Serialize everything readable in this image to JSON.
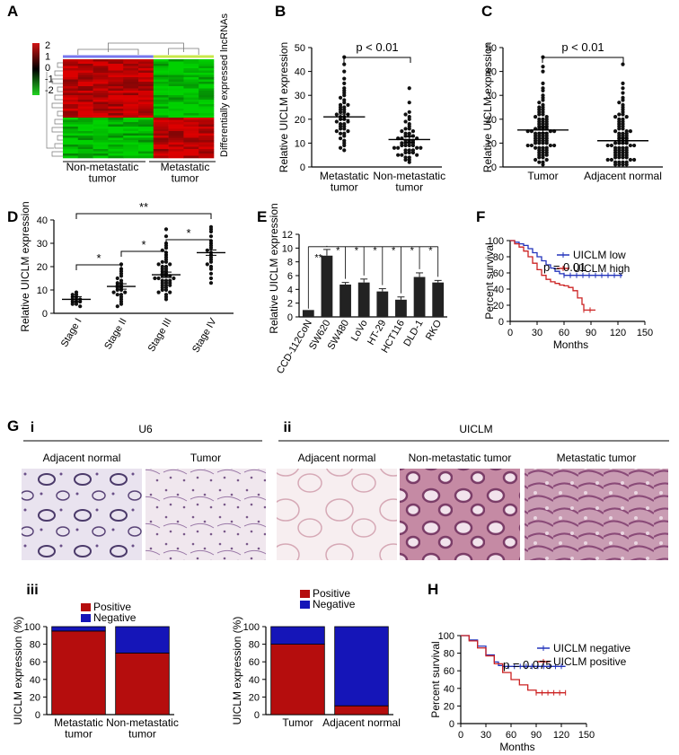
{
  "panel_letters": {
    "A": "A",
    "B": "B",
    "C": "C",
    "D": "D",
    "E": "E",
    "F": "F",
    "G": "G",
    "H": "H"
  },
  "panelA": {
    "legend_ticks": [
      "2",
      "1",
      "0",
      "-1",
      "-2"
    ],
    "group_labels": [
      "Non-metastatic\ntumor",
      "Metastatic\ntumor"
    ],
    "side_label": "Differentially expressed lncRNAs",
    "colors": {
      "high": "#d11414",
      "low": "#21d321",
      "mid": "#000000"
    }
  },
  "panelG": {
    "sub_labels": [
      "i",
      "ii",
      "iii"
    ],
    "u6_title": "U6",
    "uiclm_title": "UICLM",
    "u6_images": [
      "Adjacent normal",
      "Tumor"
    ],
    "uiclm_images": [
      "Adjacent normal",
      "Non-metastatic tumor",
      "Metastatic tumor"
    ]
  },
  "chart_data": [
    {
      "panel": "B",
      "type": "scatter",
      "ylabel": "Relative UICLM expression",
      "categories": [
        "Metastatic\ntumor",
        "Non-metastatic\ntumor"
      ],
      "ylim": [
        0,
        50
      ],
      "yticks": [
        0,
        10,
        20,
        30,
        40,
        50
      ],
      "means": [
        21,
        11.5
      ],
      "annotation": "p < 0.01",
      "series": [
        {
          "values": [
            46,
            43,
            40,
            37,
            35,
            33,
            32,
            31,
            30,
            29,
            28,
            27,
            26,
            26,
            25,
            25,
            24,
            24,
            23,
            23,
            22,
            22,
            21,
            21,
            20,
            20,
            19,
            19,
            18,
            18,
            17,
            17,
            16,
            16,
            15,
            15,
            14,
            14,
            13,
            12,
            11,
            10,
            9,
            8,
            7
          ]
        },
        {
          "values": [
            33,
            27,
            23,
            22,
            21,
            20,
            19,
            18,
            17,
            16,
            16,
            15,
            15,
            14,
            14,
            13,
            13,
            13,
            12,
            12,
            12,
            11,
            11,
            11,
            10,
            10,
            10,
            10,
            9,
            9,
            9,
            9,
            8,
            8,
            8,
            8,
            7,
            7,
            7,
            6,
            6,
            6,
            5,
            5,
            5,
            4,
            4,
            3,
            3,
            2
          ]
        }
      ]
    },
    {
      "panel": "C",
      "type": "scatter",
      "ylabel": "Relative UICLM expression",
      "categories": [
        "Tumor",
        "Adjacent normal"
      ],
      "ylim": [
        0,
        50
      ],
      "yticks": [
        0,
        10,
        20,
        30,
        40,
        50
      ],
      "means": [
        15.5,
        11
      ],
      "annotation": "p < 0.01",
      "series": [
        {
          "values": [
            46,
            42,
            40,
            35,
            33,
            32,
            30,
            29,
            28,
            27,
            26,
            25,
            25,
            24,
            24,
            23,
            23,
            22,
            22,
            21,
            21,
            20,
            20,
            20,
            19,
            19,
            19,
            18,
            18,
            18,
            17,
            17,
            17,
            16,
            16,
            16,
            16,
            15,
            15,
            15,
            15,
            14,
            14,
            14,
            14,
            13,
            13,
            13,
            13,
            12,
            12,
            12,
            12,
            11,
            11,
            11,
            11,
            10,
            10,
            10,
            10,
            9,
            9,
            9,
            9,
            8,
            8,
            8,
            8,
            7,
            7,
            7,
            6,
            6,
            6,
            5,
            5,
            5,
            4,
            4,
            3,
            3,
            2,
            2,
            1
          ]
        },
        {
          "values": [
            43,
            35,
            33,
            31,
            29,
            28,
            27,
            26,
            25,
            24,
            23,
            22,
            22,
            21,
            21,
            20,
            20,
            19,
            19,
            18,
            18,
            17,
            17,
            16,
            16,
            15,
            15,
            15,
            14,
            14,
            14,
            13,
            13,
            13,
            12,
            12,
            12,
            11,
            11,
            11,
            10,
            10,
            10,
            10,
            9,
            9,
            9,
            9,
            8,
            8,
            8,
            8,
            7,
            7,
            7,
            7,
            6,
            6,
            6,
            6,
            5,
            5,
            5,
            5,
            4,
            4,
            4,
            4,
            3,
            3,
            3,
            3,
            2,
            2,
            2,
            2,
            1,
            1,
            1,
            1
          ]
        }
      ]
    },
    {
      "panel": "D",
      "type": "scatter",
      "ylabel": "Relative UICLM expression",
      "categories": [
        "Stage I",
        "Stage II",
        "Stage III",
        "Stage IV"
      ],
      "ylim": [
        0,
        40
      ],
      "yticks": [
        0,
        10,
        20,
        30,
        40
      ],
      "means": [
        6,
        11.5,
        16.5,
        26
      ],
      "series": [
        {
          "values": [
            9,
            8,
            8,
            7,
            7,
            6,
            6,
            6,
            5,
            5,
            5,
            4,
            4,
            3
          ]
        },
        {
          "values": [
            21,
            19,
            18,
            17,
            16,
            15,
            14,
            13,
            13,
            12,
            12,
            11,
            11,
            10,
            10,
            9,
            9,
            8,
            8,
            7,
            6,
            5,
            4,
            3
          ]
        },
        {
          "values": [
            36,
            33,
            30,
            29,
            28,
            27,
            26,
            25,
            24,
            23,
            22,
            22,
            21,
            21,
            20,
            20,
            19,
            19,
            18,
            18,
            17,
            17,
            16,
            16,
            16,
            15,
            15,
            15,
            14,
            14,
            14,
            13,
            13,
            13,
            12,
            12,
            12,
            11,
            11,
            10,
            10,
            9,
            9,
            8,
            7,
            6
          ]
        },
        {
          "values": [
            37,
            36,
            35,
            33,
            31,
            30,
            29,
            28,
            27,
            26,
            25,
            24,
            23,
            22,
            21,
            20,
            19,
            17,
            15,
            13
          ]
        }
      ],
      "sig": [
        "*",
        "*",
        "*",
        "**"
      ]
    },
    {
      "panel": "E",
      "type": "bar",
      "ylabel": "Relative UICLM expression",
      "categories": [
        "CCD-112CoN",
        "SW620",
        "SW480",
        "LoVo",
        "HT-29",
        "HCT116",
        "DLD-1",
        "RKO"
      ],
      "values": [
        1,
        8.9,
        4.7,
        5,
        3.7,
        2.5,
        5.8,
        5
      ],
      "errors": [
        0,
        0.9,
        0.3,
        0.5,
        0.4,
        0.4,
        0.6,
        0.3
      ],
      "sig": [
        "",
        "**",
        "*",
        "*",
        "*",
        "*",
        "*",
        "*"
      ],
      "ylim": [
        0,
        12
      ],
      "yticks": [
        0,
        2,
        4,
        6,
        8,
        10,
        12
      ]
    },
    {
      "panel": "F",
      "type": "line",
      "ylabel": "Percent survival",
      "xlabel": "Months",
      "xlim": [
        0,
        150
      ],
      "ylim": [
        0,
        100
      ],
      "xticks": [
        0,
        30,
        60,
        90,
        120,
        150
      ],
      "yticks": [
        0,
        20,
        40,
        60,
        80,
        100
      ],
      "annotation": "p = 0.01",
      "series": [
        {
          "name": "UICLM low",
          "color": "#2233bb",
          "points": [
            [
              0,
              100
            ],
            [
              5,
              98
            ],
            [
              10,
              96
            ],
            [
              15,
              94
            ],
            [
              20,
              90
            ],
            [
              25,
              85
            ],
            [
              30,
              80
            ],
            [
              35,
              75
            ],
            [
              40,
              70
            ],
            [
              45,
              66
            ],
            [
              50,
              62
            ],
            [
              55,
              59
            ],
            [
              60,
              57
            ],
            [
              125,
              57
            ]
          ]
        },
        {
          "name": "UICLM high",
          "color": "#cc2222",
          "points": [
            [
              0,
              100
            ],
            [
              5,
              96
            ],
            [
              10,
              92
            ],
            [
              15,
              87
            ],
            [
              20,
              80
            ],
            [
              25,
              72
            ],
            [
              30,
              64
            ],
            [
              35,
              57
            ],
            [
              40,
              52
            ],
            [
              45,
              49
            ],
            [
              50,
              47
            ],
            [
              55,
              45
            ],
            [
              60,
              44
            ],
            [
              65,
              42
            ],
            [
              70,
              38
            ],
            [
              75,
              29
            ],
            [
              80,
              21
            ],
            [
              82,
              14
            ],
            [
              95,
              14
            ]
          ]
        }
      ]
    },
    {
      "panel": "Giii-a",
      "type": "bar",
      "ylabel": "UICLM expression (%)",
      "categories": [
        "Metastatic\ntumor",
        "Non-metastatic\ntumor"
      ],
      "series": [
        {
          "name": "Positive",
          "color": "#b50d0d",
          "values": [
            95,
            70
          ]
        },
        {
          "name": "Negative",
          "color": "#1515b8",
          "values": [
            5,
            30
          ]
        }
      ],
      "ylim": [
        0,
        100
      ],
      "yticks": [
        0,
        20,
        40,
        60,
        80,
        100
      ]
    },
    {
      "panel": "Giii-b",
      "type": "bar",
      "ylabel": "UICLM expression (%)",
      "categories": [
        "Tumor",
        "Adjacent normal"
      ],
      "series": [
        {
          "name": "Positive",
          "color": "#b50d0d",
          "values": [
            80,
            10
          ]
        },
        {
          "name": "Negative",
          "color": "#1515b8",
          "values": [
            20,
            90
          ]
        }
      ],
      "ylim": [
        0,
        100
      ],
      "yticks": [
        0,
        20,
        40,
        60,
        80,
        100
      ]
    },
    {
      "panel": "H",
      "type": "line",
      "ylabel": "Percent survival",
      "xlabel": "Months",
      "xlim": [
        0,
        150
      ],
      "ylim": [
        0,
        100
      ],
      "xticks": [
        0,
        30,
        60,
        90,
        120,
        150
      ],
      "yticks": [
        0,
        20,
        40,
        60,
        80,
        100
      ],
      "annotation": "p = 0.075",
      "series": [
        {
          "name": "UICLM negative",
          "color": "#2233bb",
          "points": [
            [
              0,
              100
            ],
            [
              10,
              95
            ],
            [
              20,
              88
            ],
            [
              30,
              78
            ],
            [
              40,
              70
            ],
            [
              45,
              66
            ],
            [
              50,
              65
            ],
            [
              125,
              65
            ]
          ]
        },
        {
          "name": "UICLM positive",
          "color": "#cc2222",
          "points": [
            [
              0,
              100
            ],
            [
              10,
              94
            ],
            [
              20,
              86
            ],
            [
              30,
              77
            ],
            [
              40,
              68
            ],
            [
              50,
              58
            ],
            [
              60,
              50
            ],
            [
              70,
              44
            ],
            [
              80,
              38
            ],
            [
              90,
              35
            ],
            [
              125,
              35
            ]
          ]
        }
      ]
    }
  ]
}
